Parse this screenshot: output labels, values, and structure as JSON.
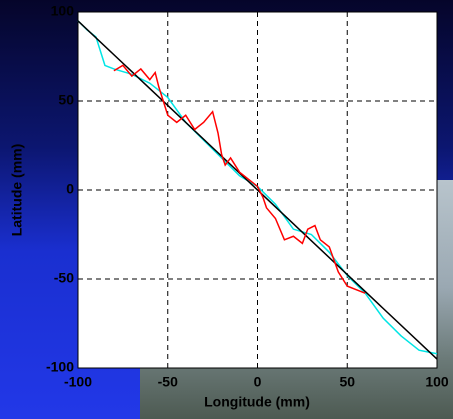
{
  "chart_data": {
    "type": "line",
    "x_label": "Longitude (mm)",
    "y_label": "Latitude (mm)",
    "xlim": [
      -100,
      100
    ],
    "ylim": [
      -100,
      100
    ],
    "xticks": [
      -100,
      -50,
      0,
      50,
      100
    ],
    "yticks": [
      -100,
      -50,
      0,
      50,
      100
    ],
    "grid": true,
    "series": [
      {
        "color": "#00e5e5",
        "x": [
          -100,
          -95,
          -90,
          -85,
          -80,
          -70,
          -60,
          -50,
          -40,
          -30,
          -20,
          -10,
          0,
          10,
          20,
          30,
          40,
          50,
          60,
          70,
          80,
          85,
          90,
          95,
          100
        ],
        "values": [
          95,
          90,
          86,
          70,
          68,
          65,
          60,
          52,
          38,
          28,
          18,
          8,
          2,
          -8,
          -22,
          -25,
          -35,
          -48,
          -58,
          -72,
          -82,
          -86,
          -90,
          -91,
          -92
        ]
      },
      {
        "color": "#000000",
        "x": [
          -100,
          100
        ],
        "values": [
          95,
          -95
        ]
      },
      {
        "color": "#ff0000",
        "x": [
          -80,
          -75,
          -70,
          -65,
          -60,
          -57,
          -55,
          -50,
          -45,
          -40,
          -35,
          -30,
          -25,
          -22,
          -20,
          -18,
          -15,
          -10,
          -5,
          0,
          3,
          5,
          10,
          15,
          20,
          25,
          28,
          32,
          35,
          40,
          45,
          50,
          55,
          60
        ],
        "values": [
          67,
          70,
          64,
          68,
          62,
          66,
          58,
          42,
          38,
          42,
          34,
          38,
          44,
          32,
          20,
          14,
          18,
          10,
          6,
          2,
          -4,
          -10,
          -16,
          -28,
          -26,
          -30,
          -22,
          -20,
          -28,
          -32,
          -46,
          -54,
          -56,
          -58
        ]
      }
    ]
  }
}
